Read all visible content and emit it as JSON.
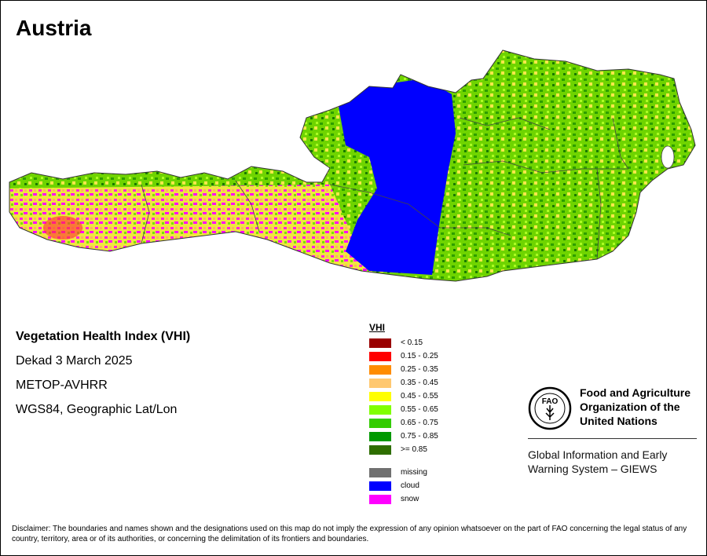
{
  "title": "Austria",
  "info": {
    "line1": "Vegetation Health Index (VHI)",
    "line2": "Dekad 3 March 2025",
    "line3": "METOP-AVHRR",
    "line4": "WGS84, Geographic Lat/Lon"
  },
  "legend": {
    "title": "VHI",
    "classes": [
      {
        "label": "< 0.15",
        "color": "#990000"
      },
      {
        "label": "0.15 - 0.25",
        "color": "#ff0000"
      },
      {
        "label": "0.25 - 0.35",
        "color": "#ff8c00"
      },
      {
        "label": "0.35 - 0.45",
        "color": "#ffc870"
      },
      {
        "label": "0.45 - 0.55",
        "color": "#ffff00"
      },
      {
        "label": "0.55 - 0.65",
        "color": "#80ff00"
      },
      {
        "label": "0.65 - 0.75",
        "color": "#33cc00"
      },
      {
        "label": "0.75 - 0.85",
        "color": "#009900"
      },
      {
        "label": ">= 0.85",
        "color": "#2e6e00"
      }
    ],
    "extra": [
      {
        "label": "missing",
        "color": "#707070"
      },
      {
        "label": "cloud",
        "color": "#0000ff"
      },
      {
        "label": "snow",
        "color": "#ff00ff"
      }
    ]
  },
  "fao": {
    "name_l1": "Food and Agriculture",
    "name_l2": "Organization of the",
    "name_l3": "United Nations",
    "logo_text": "FAO",
    "sub_l1": "Global Information and Early",
    "sub_l2": "Warning System – GIEWS"
  },
  "disclaimer": "Disclaimer: The boundaries and names shown and the designations used on this map do not imply the expression of any opinion whatsoever on the part of FAO concerning the legal status of any country, territory, area or of its authorities, or concerning the delimitation of its frontiers and boundaries."
}
